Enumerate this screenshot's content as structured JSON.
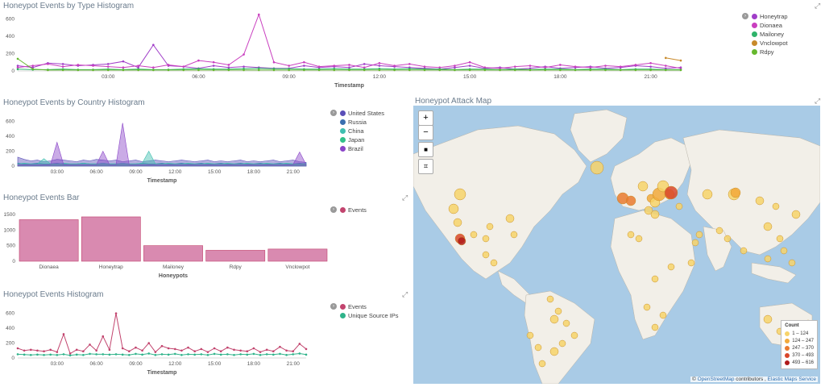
{
  "panels": {
    "type_hist": {
      "title": "Honeypot Events by Type Histogram",
      "legend": [
        {
          "label": "Honeytrap",
          "color": "#a03ec8"
        },
        {
          "label": "Dionaea",
          "color": "#c93fbf"
        },
        {
          "label": "Mailoney",
          "color": "#2fb36a"
        },
        {
          "label": "Vnclowpot",
          "color": "#c88a2a"
        },
        {
          "label": "Rdpy",
          "color": "#66b82e"
        }
      ],
      "yticks": [
        "600",
        "400",
        "200",
        "0"
      ],
      "xticks": [
        "03:00",
        "06:00",
        "09:00",
        "12:00",
        "15:00",
        "18:00",
        "21:00"
      ],
      "xlabel": "Timestamp"
    },
    "country_hist": {
      "title": "Honeypot Events by Country Histogram",
      "legend": [
        {
          "label": "United States",
          "color": "#5a4fb8"
        },
        {
          "label": "Russia",
          "color": "#3a6fb0"
        },
        {
          "label": "China",
          "color": "#3fbfb0"
        },
        {
          "label": "Japan",
          "color": "#32c08a"
        },
        {
          "label": "Brazil",
          "color": "#8a44c8"
        }
      ],
      "yticks": [
        "600",
        "400",
        "200",
        "0"
      ],
      "xticks": [
        "03:00",
        "06:00",
        "09:00",
        "12:00",
        "15:00",
        "18:00",
        "21:00"
      ],
      "xlabel": "Timestamp"
    },
    "bar": {
      "title": "Honeypot Events Bar",
      "legend": [
        {
          "label": "Events",
          "color": "#c2446e"
        }
      ],
      "yticks": [
        "1500",
        "1000",
        "500",
        "0"
      ],
      "xlabel": "Honeypots"
    },
    "events_hist": {
      "title": "Honeypot Events Histogram",
      "legend": [
        {
          "label": "Events",
          "color": "#c2446e"
        },
        {
          "label": "Unique Source IPs",
          "color": "#2fb38a"
        }
      ],
      "yticks": [
        "600",
        "400",
        "200",
        "0"
      ],
      "xticks": [
        "03:00",
        "06:00",
        "09:00",
        "12:00",
        "15:00",
        "18:00",
        "21:00"
      ],
      "xlabel": "Timestamp"
    },
    "map": {
      "title": "Honeypot Attack Map",
      "legend_title": "Count",
      "legend": [
        {
          "label": "1 – 124",
          "color": "#f7d36a"
        },
        {
          "label": "124 – 247",
          "color": "#f2a93b"
        },
        {
          "label": "247 – 370",
          "color": "#ea7a2f"
        },
        {
          "label": "370 – 493",
          "color": "#d9462a"
        },
        {
          "label": "493 – 616",
          "color": "#b01a1a"
        }
      ],
      "attribution_osm": "OpenStreetMap",
      "attribution_mid": " contributors , ",
      "attribution_ems": "Elastic Maps Service",
      "controls": {
        "zoom_in": "+",
        "zoom_out": "−",
        "draw": "■",
        "crop": "⌗"
      }
    }
  },
  "chart_data": [
    {
      "type": "line",
      "title": "Honeypot Events by Type Histogram",
      "xlabel": "Timestamp",
      "ylim": [
        0,
        650
      ],
      "x": [
        "00:00",
        "00:30",
        "01:00",
        "01:30",
        "02:00",
        "02:30",
        "03:00",
        "03:30",
        "04:00",
        "04:30",
        "05:00",
        "05:30",
        "06:00",
        "06:30",
        "07:00",
        "07:30",
        "08:00",
        "08:30",
        "09:00",
        "09:30",
        "10:00",
        "10:30",
        "11:00",
        "11:30",
        "12:00",
        "12:30",
        "13:00",
        "13:30",
        "14:00",
        "14:30",
        "15:00",
        "15:30",
        "16:00",
        "16:30",
        "17:00",
        "17:30",
        "18:00",
        "18:30",
        "19:00",
        "19:30",
        "20:00",
        "20:30",
        "21:00",
        "21:30",
        "22:00"
      ],
      "series": [
        {
          "name": "Honeytrap",
          "values": [
            60,
            40,
            90,
            80,
            60,
            70,
            80,
            110,
            40,
            300,
            60,
            50,
            30,
            60,
            40,
            50,
            40,
            30,
            30,
            60,
            40,
            50,
            40,
            80,
            60,
            50,
            40,
            30,
            20,
            40,
            60,
            30,
            40,
            20,
            30,
            50,
            30,
            40,
            50,
            30,
            40,
            60,
            50,
            30,
            40
          ]
        },
        {
          "name": "Dionaea",
          "values": [
            40,
            60,
            80,
            50,
            70,
            60,
            50,
            40,
            60,
            40,
            70,
            50,
            120,
            100,
            70,
            190,
            650,
            100,
            60,
            100,
            50,
            60,
            70,
            40,
            90,
            60,
            80,
            50,
            40,
            60,
            100,
            40,
            30,
            50,
            60,
            40,
            70,
            50,
            40,
            60,
            50,
            70,
            90,
            60,
            30
          ]
        },
        {
          "name": "Mailoney",
          "values": [
            20,
            15,
            15,
            20,
            15,
            15,
            20,
            15,
            20,
            15,
            15,
            20,
            25,
            20,
            20,
            25,
            30,
            25,
            25,
            20,
            20,
            25,
            20,
            20,
            25,
            20,
            25,
            20,
            20,
            15,
            20,
            20,
            15,
            20,
            15,
            20,
            20,
            15,
            20,
            20,
            15,
            20,
            20,
            15,
            15
          ]
        },
        {
          "name": "Vnclowpot",
          "values": [
            null,
            null,
            null,
            null,
            null,
            null,
            null,
            null,
            null,
            null,
            null,
            null,
            null,
            null,
            null,
            null,
            null,
            null,
            null,
            null,
            null,
            null,
            null,
            null,
            null,
            null,
            null,
            null,
            null,
            null,
            null,
            null,
            null,
            null,
            null,
            null,
            null,
            null,
            null,
            null,
            null,
            null,
            null,
            150,
            120
          ]
        },
        {
          "name": "Rdpy",
          "values": [
            140,
            20,
            10,
            10,
            10,
            10,
            10,
            10,
            10,
            10,
            10,
            10,
            10,
            10,
            10,
            10,
            10,
            10,
            10,
            10,
            10,
            10,
            10,
            10,
            10,
            10,
            10,
            10,
            10,
            10,
            10,
            10,
            10,
            10,
            10,
            10,
            10,
            10,
            10,
            10,
            10,
            10,
            10,
            10,
            10
          ]
        }
      ]
    },
    {
      "type": "area",
      "title": "Honeypot Events by Country Histogram",
      "xlabel": "Timestamp",
      "ylim": [
        0,
        650
      ],
      "x": [
        "00:00",
        "00:30",
        "01:00",
        "01:30",
        "02:00",
        "02:30",
        "03:00",
        "03:30",
        "04:00",
        "04:30",
        "05:00",
        "05:30",
        "06:00",
        "06:30",
        "07:00",
        "07:30",
        "08:00",
        "08:30",
        "09:00",
        "09:30",
        "10:00",
        "10:30",
        "11:00",
        "11:30",
        "12:00",
        "12:30",
        "13:00",
        "13:30",
        "14:00",
        "14:30",
        "15:00",
        "15:30",
        "16:00",
        "16:30",
        "17:00",
        "17:30",
        "18:00",
        "18:30",
        "19:00",
        "19:30",
        "20:00",
        "20:30",
        "21:00",
        "21:30",
        "22:00"
      ],
      "series": [
        {
          "name": "United States",
          "values": [
            120,
            90,
            70,
            80,
            60,
            70,
            90,
            80,
            70,
            60,
            80,
            70,
            90,
            80,
            70,
            80,
            60,
            70,
            80,
            60,
            70,
            80,
            70,
            60,
            70,
            80,
            70,
            60,
            70,
            80,
            60,
            70,
            60,
            70,
            80,
            60,
            70,
            60,
            70,
            80,
            60,
            70,
            80,
            60,
            50
          ]
        },
        {
          "name": "Russia",
          "values": [
            40,
            30,
            30,
            40,
            30,
            30,
            40,
            30,
            30,
            30,
            40,
            30,
            30,
            40,
            30,
            30,
            40,
            30,
            30,
            40,
            30,
            30,
            40,
            30,
            30,
            40,
            30,
            30,
            40,
            30,
            30,
            40,
            30,
            30,
            40,
            30,
            30,
            40,
            30,
            30,
            40,
            30,
            30,
            40,
            30
          ]
        },
        {
          "name": "China",
          "values": [
            30,
            40,
            30,
            30,
            100,
            30,
            30,
            40,
            30,
            30,
            40,
            30,
            30,
            40,
            30,
            30,
            40,
            30,
            30,
            40,
            200,
            30,
            30,
            40,
            30,
            30,
            40,
            30,
            30,
            40,
            30,
            30,
            40,
            30,
            30,
            40,
            30,
            30,
            40,
            30,
            30,
            40,
            30,
            30,
            40
          ]
        },
        {
          "name": "Japan",
          "values": [
            20,
            20,
            20,
            20,
            20,
            20,
            20,
            20,
            20,
            20,
            20,
            20,
            20,
            20,
            20,
            20,
            20,
            20,
            20,
            20,
            20,
            20,
            20,
            20,
            20,
            20,
            20,
            20,
            20,
            20,
            20,
            20,
            20,
            20,
            20,
            20,
            20,
            20,
            20,
            20,
            20,
            20,
            20,
            20,
            20
          ]
        },
        {
          "name": "Brazil",
          "values": [
            20,
            20,
            20,
            20,
            20,
            20,
            320,
            20,
            20,
            20,
            20,
            20,
            20,
            200,
            20,
            20,
            580,
            20,
            20,
            20,
            20,
            20,
            20,
            20,
            20,
            20,
            20,
            20,
            20,
            20,
            20,
            20,
            20,
            20,
            20,
            20,
            20,
            20,
            20,
            20,
            20,
            20,
            20,
            190,
            20
          ]
        }
      ]
    },
    {
      "type": "bar",
      "title": "Honeypot Events Bar",
      "xlabel": "Honeypots",
      "ylim": [
        0,
        1600
      ],
      "categories": [
        "Dionaea",
        "Honeytrap",
        "Mailoney",
        "Rdpy",
        "Vnclowpot"
      ],
      "series": [
        {
          "name": "Events",
          "values": [
            1330,
            1420,
            500,
            350,
            390
          ]
        }
      ]
    },
    {
      "type": "line",
      "title": "Honeypot Events Histogram",
      "xlabel": "Timestamp",
      "ylim": [
        0,
        650
      ],
      "x": [
        "00:00",
        "00:30",
        "01:00",
        "01:30",
        "02:00",
        "02:30",
        "03:00",
        "03:30",
        "04:00",
        "04:30",
        "05:00",
        "05:30",
        "06:00",
        "06:30",
        "07:00",
        "07:30",
        "08:00",
        "08:30",
        "09:00",
        "09:30",
        "10:00",
        "10:30",
        "11:00",
        "11:30",
        "12:00",
        "12:30",
        "13:00",
        "13:30",
        "14:00",
        "14:30",
        "15:00",
        "15:30",
        "16:00",
        "16:30",
        "17:00",
        "17:30",
        "18:00",
        "18:30",
        "19:00",
        "19:30",
        "20:00",
        "20:30",
        "21:00",
        "21:30",
        "22:00"
      ],
      "series": [
        {
          "name": "Events",
          "values": [
            130,
            100,
            110,
            100,
            90,
            110,
            80,
            320,
            60,
            110,
            90,
            180,
            100,
            290,
            110,
            600,
            130,
            90,
            140,
            100,
            200,
            80,
            160,
            130,
            120,
            100,
            140,
            90,
            120,
            80,
            130,
            90,
            140,
            110,
            100,
            90,
            130,
            80,
            110,
            90,
            150,
            100,
            90,
            190,
            120
          ]
        },
        {
          "name": "Unique Source IPs",
          "values": [
            50,
            45,
            40,
            45,
            40,
            45,
            40,
            50,
            35,
            45,
            40,
            55,
            50,
            50,
            45,
            50,
            45,
            40,
            55,
            45,
            60,
            40,
            50,
            45,
            55,
            40,
            50,
            45,
            50,
            40,
            55,
            45,
            50,
            40,
            50,
            45,
            55,
            40,
            50,
            45,
            55,
            40,
            50,
            60,
            45
          ]
        }
      ]
    }
  ]
}
